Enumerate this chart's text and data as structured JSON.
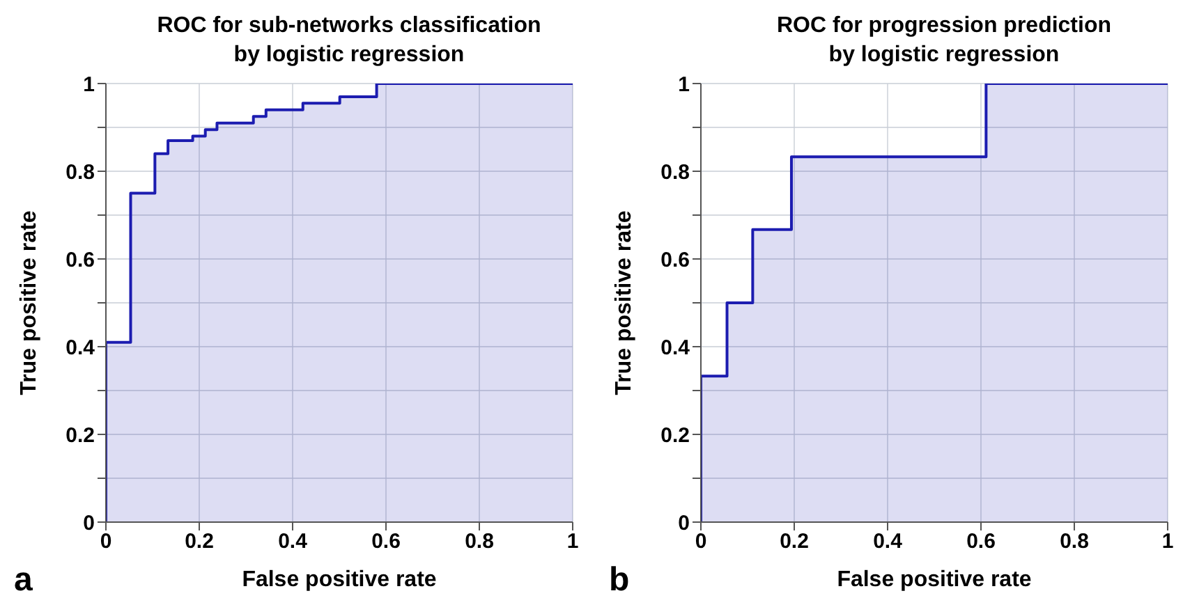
{
  "chart_data": [
    {
      "type": "step",
      "title": "ROC for sub-networks classification\nby logistic regression",
      "xlabel": "False positive rate",
      "ylabel": "True positive rate",
      "annotations": [
        "a"
      ],
      "series": [
        {
          "color": "#1c1cb0",
          "x": [
            0,
            0,
            0.053,
            0.105,
            0.133,
            0.186,
            0.213,
            0.238,
            0.316,
            0.343,
            0.422,
            0.501,
            0.58,
            1
          ],
          "values": [
            0,
            0.41,
            0.75,
            0.84,
            0.87,
            0.88,
            0.895,
            0.91,
            0.925,
            0.94,
            0.955,
            0.97,
            1,
            1
          ]
        }
      ],
      "xlim": [
        0,
        1
      ],
      "xticks": [
        0,
        0.2,
        0.4,
        0.6,
        0.8,
        1
      ],
      "ylim": [
        0,
        1
      ],
      "yticks": [
        0,
        {
          "value": 0.1,
          "label": null
        },
        0.2,
        {
          "value": 0.3,
          "label": null
        },
        0.4,
        {
          "value": 0.5,
          "label": null
        },
        0.6,
        {
          "value": 0.7,
          "label": null
        },
        0.8,
        {
          "value": 0.9,
          "label": null
        },
        1
      ],
      "grid": true
    },
    {
      "type": "step",
      "title": "ROC for progression prediction\nby logistic regression",
      "xlabel": "False positive rate",
      "ylabel": "True positive rate",
      "annotations": [
        "b"
      ],
      "series": [
        {
          "color": "#1c1cb0",
          "x": [
            0,
            0,
            0.056,
            0.111,
            0.194,
            0.611,
            1
          ],
          "values": [
            0,
            0.333,
            0.5,
            0.667,
            0.833,
            1,
            1
          ]
        }
      ],
      "xlim": [
        0,
        1
      ],
      "xticks": [
        0,
        0.2,
        0.4,
        0.6,
        0.8,
        1
      ],
      "ylim": [
        0,
        1
      ],
      "yticks": [
        0,
        {
          "value": 0.1,
          "label": null
        },
        0.2,
        {
          "value": 0.3,
          "label": null
        },
        0.4,
        {
          "value": 0.5,
          "label": null
        },
        0.6,
        {
          "value": 0.7,
          "label": null
        },
        0.8,
        {
          "value": 0.9,
          "label": null
        },
        1
      ],
      "grid": true
    }
  ]
}
